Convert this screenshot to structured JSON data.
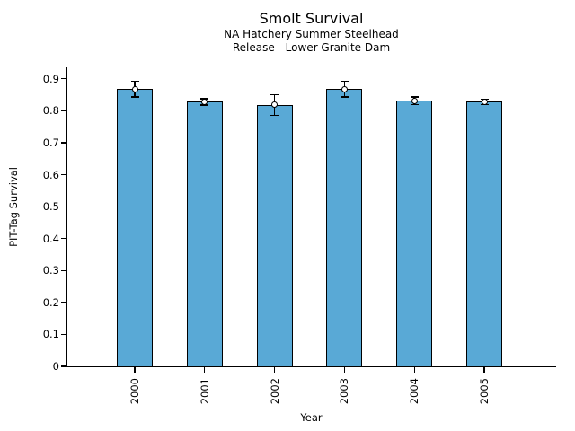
{
  "chart_data": {
    "type": "bar",
    "title": "Smolt Survival",
    "subtitle_lines": [
      "NA Hatchery Summer Steelhead",
      "Release - Lower Granite Dam"
    ],
    "xlabel": "Year",
    "ylabel": "PIT-Tag Survival",
    "categories": [
      "2000",
      "2001",
      "2002",
      "2003",
      "2004",
      "2005"
    ],
    "values": [
      0.868,
      0.828,
      0.818,
      0.868,
      0.831,
      0.828
    ],
    "errors": [
      0.025,
      0.01,
      0.032,
      0.025,
      0.012,
      0.008
    ],
    "error_marker": "open-circle",
    "yticks": [
      0,
      0.1,
      0.2,
      0.3,
      0.4,
      0.5,
      0.6,
      0.7,
      0.8,
      0.9
    ],
    "ytick_labels": [
      "0",
      "0.1",
      "0.2",
      "0.3",
      "0.4",
      "0.5",
      "0.6",
      "0.7",
      "0.8",
      "0.9"
    ],
    "ylim": [
      0,
      0.936
    ],
    "grid": false,
    "legend": null,
    "bar_color": "#59a9d6",
    "bar_edge_color": "#000000",
    "axis_color": "#000000",
    "text_color": "#000000"
  }
}
